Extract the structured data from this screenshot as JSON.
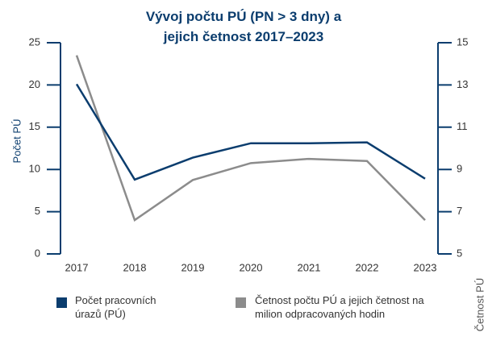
{
  "chart_data": {
    "type": "line",
    "title": "Vývoj počtu PÚ (PN > 3 dny) a jejich četnost 2017–2023",
    "ylabel": "Počet PÚ",
    "y2label": "Četnost PÚ",
    "categories": [
      "2017",
      "2018",
      "2019",
      "2020",
      "2021",
      "2022",
      "2023"
    ],
    "series": [
      {
        "name": "Počet pracovních úrazů (PÚ)",
        "color": "#0b3d6e",
        "values": [
          20.1,
          8.8,
          11.4,
          13.1,
          13.1,
          13.2,
          8.9
        ]
      },
      {
        "name": "Četnost počtu PÚ a jejich četnost na milion odpracovaných hodin",
        "color": "#8c8c8c",
        "axis": "y2",
        "values": [
          14.4,
          6.6,
          8.5,
          9.3,
          9.5,
          9.4,
          6.6
        ]
      }
    ],
    "ylim": [
      0,
      25
    ],
    "yticks": [
      0,
      5,
      10,
      15,
      20,
      25
    ],
    "y2lim": [
      5,
      15
    ],
    "y2ticks": [
      5,
      7,
      9,
      11,
      13,
      15
    ],
    "legend": "bottom"
  }
}
